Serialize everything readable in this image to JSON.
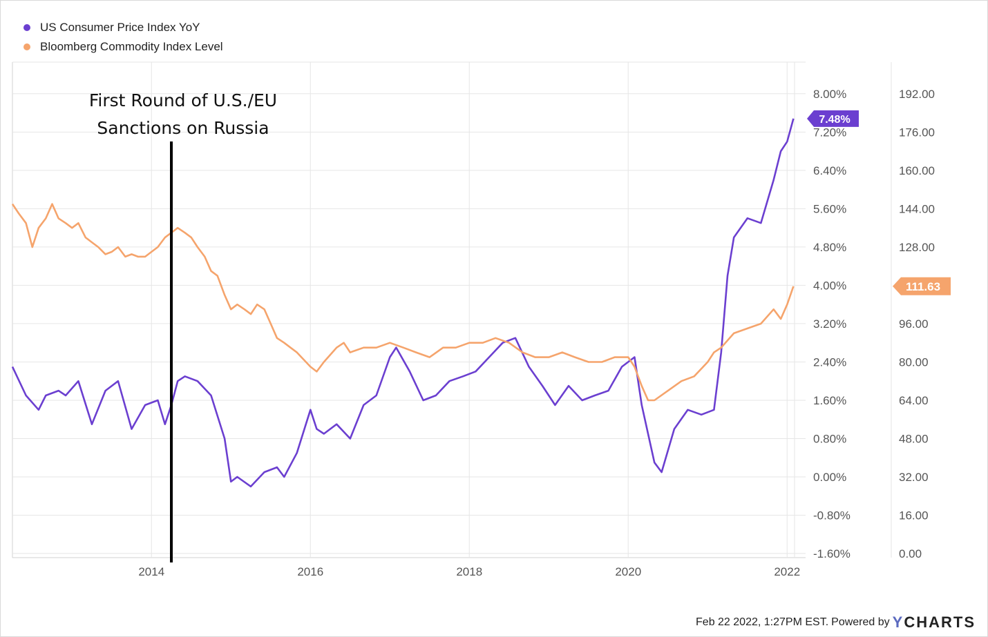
{
  "legend": {
    "cpi_label": "US Consumer Price Index YoY",
    "bcom_label": "Bloomberg Commodity Index Level"
  },
  "colors": {
    "cpi": "#6b3fd0",
    "bcom": "#f5a46c",
    "grid": "#e6e6e6",
    "axis_text": "#555555"
  },
  "annotation": {
    "line1": "First Round of U.S./EU",
    "line2": "Sanctions on Russia"
  },
  "footer": {
    "timestamp": "Feb 22 2022, 1:27PM EST.",
    "powered": "Powered by",
    "brand_y": "Y",
    "brand_rest": "CHARTS"
  },
  "chart_data": {
    "type": "line",
    "x_ticks": [
      "2014",
      "2016",
      "2018",
      "2020",
      "2022"
    ],
    "xlim": [
      "2012-04",
      "2022-02"
    ],
    "y_left": {
      "ticks": [
        "8.00%",
        "7.20%",
        "6.40%",
        "5.60%",
        "4.80%",
        "4.00%",
        "3.20%",
        "2.40%",
        "1.60%",
        "0.80%",
        "0.00%",
        "-0.80%",
        "-1.60%"
      ],
      "ylim": [
        -1.6,
        8.0
      ]
    },
    "y_right": {
      "ticks": [
        "192.00",
        "176.00",
        "160.00",
        "144.00",
        "128.00",
        "112.00",
        "96.00",
        "80.00",
        "64.00",
        "48.00",
        "32.00",
        "16.00",
        "0.00"
      ],
      "ylim": [
        0,
        192
      ]
    },
    "annotation_line_date": "2014.25",
    "series": [
      {
        "name": "US Consumer Price Index YoY",
        "axis": "left",
        "end_label": "7.48%",
        "points": [
          [
            2012.25,
            2.3
          ],
          [
            2012.42,
            1.7
          ],
          [
            2012.58,
            1.4
          ],
          [
            2012.67,
            1.7
          ],
          [
            2012.83,
            1.8
          ],
          [
            2012.92,
            1.7
          ],
          [
            2013.08,
            2.0
          ],
          [
            2013.25,
            1.1
          ],
          [
            2013.42,
            1.8
          ],
          [
            2013.58,
            2.0
          ],
          [
            2013.75,
            1.0
          ],
          [
            2013.92,
            1.5
          ],
          [
            2014.08,
            1.6
          ],
          [
            2014.17,
            1.1
          ],
          [
            2014.25,
            1.5
          ],
          [
            2014.33,
            2.0
          ],
          [
            2014.42,
            2.1
          ],
          [
            2014.58,
            2.0
          ],
          [
            2014.75,
            1.7
          ],
          [
            2014.92,
            0.8
          ],
          [
            2015.0,
            -0.1
          ],
          [
            2015.08,
            0.0
          ],
          [
            2015.25,
            -0.2
          ],
          [
            2015.42,
            0.1
          ],
          [
            2015.58,
            0.2
          ],
          [
            2015.67,
            0.0
          ],
          [
            2015.83,
            0.5
          ],
          [
            2016.0,
            1.4
          ],
          [
            2016.08,
            1.0
          ],
          [
            2016.17,
            0.9
          ],
          [
            2016.33,
            1.1
          ],
          [
            2016.5,
            0.8
          ],
          [
            2016.67,
            1.5
          ],
          [
            2016.83,
            1.7
          ],
          [
            2017.0,
            2.5
          ],
          [
            2017.08,
            2.7
          ],
          [
            2017.25,
            2.2
          ],
          [
            2017.42,
            1.6
          ],
          [
            2017.58,
            1.7
          ],
          [
            2017.75,
            2.0
          ],
          [
            2017.92,
            2.1
          ],
          [
            2018.08,
            2.2
          ],
          [
            2018.25,
            2.5
          ],
          [
            2018.42,
            2.8
          ],
          [
            2018.58,
            2.9
          ],
          [
            2018.75,
            2.3
          ],
          [
            2018.92,
            1.9
          ],
          [
            2019.08,
            1.5
          ],
          [
            2019.25,
            1.9
          ],
          [
            2019.42,
            1.6
          ],
          [
            2019.58,
            1.7
          ],
          [
            2019.75,
            1.8
          ],
          [
            2019.92,
            2.3
          ],
          [
            2020.08,
            2.5
          ],
          [
            2020.17,
            1.5
          ],
          [
            2020.33,
            0.3
          ],
          [
            2020.42,
            0.1
          ],
          [
            2020.58,
            1.0
          ],
          [
            2020.75,
            1.4
          ],
          [
            2020.92,
            1.3
          ],
          [
            2021.08,
            1.4
          ],
          [
            2021.17,
            2.6
          ],
          [
            2021.25,
            4.2
          ],
          [
            2021.33,
            5.0
          ],
          [
            2021.5,
            5.4
          ],
          [
            2021.67,
            5.3
          ],
          [
            2021.83,
            6.2
          ],
          [
            2021.92,
            6.8
          ],
          [
            2022.0,
            7.0
          ],
          [
            2022.08,
            7.48
          ]
        ]
      },
      {
        "name": "Bloomberg Commodity Index Level",
        "axis": "right",
        "end_label": "111.63",
        "points": [
          [
            2012.25,
            146
          ],
          [
            2012.33,
            142
          ],
          [
            2012.42,
            138
          ],
          [
            2012.5,
            128
          ],
          [
            2012.58,
            136
          ],
          [
            2012.67,
            140
          ],
          [
            2012.75,
            146
          ],
          [
            2012.83,
            140
          ],
          [
            2012.92,
            138
          ],
          [
            2013.0,
            136
          ],
          [
            2013.08,
            138
          ],
          [
            2013.17,
            132
          ],
          [
            2013.25,
            130
          ],
          [
            2013.33,
            128
          ],
          [
            2013.42,
            125
          ],
          [
            2013.5,
            126
          ],
          [
            2013.58,
            128
          ],
          [
            2013.67,
            124
          ],
          [
            2013.75,
            125
          ],
          [
            2013.83,
            124
          ],
          [
            2013.92,
            124
          ],
          [
            2014.0,
            126
          ],
          [
            2014.08,
            128
          ],
          [
            2014.17,
            132
          ],
          [
            2014.25,
            134
          ],
          [
            2014.33,
            136
          ],
          [
            2014.42,
            134
          ],
          [
            2014.5,
            132
          ],
          [
            2014.58,
            128
          ],
          [
            2014.67,
            124
          ],
          [
            2014.75,
            118
          ],
          [
            2014.83,
            116
          ],
          [
            2014.92,
            108
          ],
          [
            2015.0,
            102
          ],
          [
            2015.08,
            104
          ],
          [
            2015.17,
            102
          ],
          [
            2015.25,
            100
          ],
          [
            2015.33,
            104
          ],
          [
            2015.42,
            102
          ],
          [
            2015.5,
            96
          ],
          [
            2015.58,
            90
          ],
          [
            2015.67,
            88
          ],
          [
            2015.75,
            86
          ],
          [
            2015.83,
            84
          ],
          [
            2016.0,
            78
          ],
          [
            2016.08,
            76
          ],
          [
            2016.17,
            80
          ],
          [
            2016.33,
            86
          ],
          [
            2016.42,
            88
          ],
          [
            2016.5,
            84
          ],
          [
            2016.67,
            86
          ],
          [
            2016.83,
            86
          ],
          [
            2017.0,
            88
          ],
          [
            2017.17,
            86
          ],
          [
            2017.33,
            84
          ],
          [
            2017.5,
            82
          ],
          [
            2017.67,
            86
          ],
          [
            2017.83,
            86
          ],
          [
            2018.0,
            88
          ],
          [
            2018.17,
            88
          ],
          [
            2018.33,
            90
          ],
          [
            2018.5,
            88
          ],
          [
            2018.67,
            84
          ],
          [
            2018.83,
            82
          ],
          [
            2019.0,
            82
          ],
          [
            2019.17,
            84
          ],
          [
            2019.33,
            82
          ],
          [
            2019.5,
            80
          ],
          [
            2019.67,
            80
          ],
          [
            2019.83,
            82
          ],
          [
            2020.0,
            82
          ],
          [
            2020.08,
            78
          ],
          [
            2020.17,
            70
          ],
          [
            2020.25,
            64
          ],
          [
            2020.33,
            64
          ],
          [
            2020.5,
            68
          ],
          [
            2020.67,
            72
          ],
          [
            2020.83,
            74
          ],
          [
            2021.0,
            80
          ],
          [
            2021.08,
            84
          ],
          [
            2021.17,
            86
          ],
          [
            2021.33,
            92
          ],
          [
            2021.5,
            94
          ],
          [
            2021.67,
            96
          ],
          [
            2021.83,
            102
          ],
          [
            2021.92,
            98
          ],
          [
            2022.0,
            104
          ],
          [
            2022.08,
            111.63
          ]
        ]
      }
    ]
  }
}
